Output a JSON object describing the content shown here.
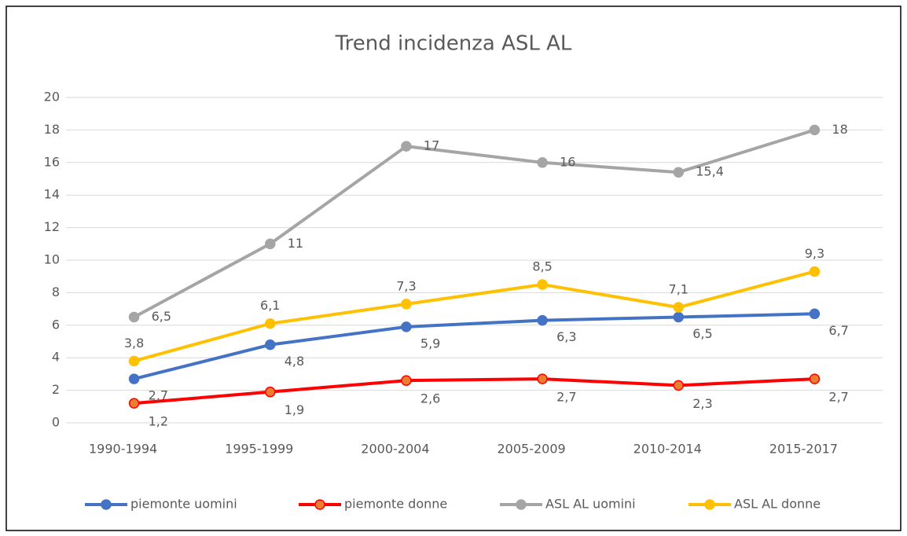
{
  "chart_data": {
    "type": "line",
    "title": "Trend incidenza ASL AL",
    "categories": [
      "1990-1994",
      "1995-1999",
      "2000-2004",
      "2005-2009",
      "2010-2014",
      "2015-2017"
    ],
    "series": [
      {
        "name": "piemonte uomini",
        "color": "#4472c4",
        "values": [
          2.7,
          4.8,
          5.9,
          6.3,
          6.5,
          6.7
        ],
        "value_labels": [
          "2,7",
          "4,8",
          "5,9",
          "6,3",
          "6,5",
          "6,7"
        ]
      },
      {
        "name": "piemonte donne",
        "color": "#ff0000",
        "values": [
          1.2,
          1.9,
          2.6,
          2.7,
          2.3,
          2.7
        ],
        "value_labels": [
          "1,2",
          "1,9",
          "2,6",
          "2,7",
          "2,3",
          "2,7"
        ]
      },
      {
        "name": "ASL AL uomini",
        "color": "#a5a5a5",
        "values": [
          6.5,
          11,
          17,
          16,
          15.4,
          18
        ],
        "value_labels": [
          "6,5",
          "11",
          "17",
          "16",
          "15,4",
          "18"
        ]
      },
      {
        "name": "ASL AL donne",
        "color": "#ffc000",
        "values": [
          3.8,
          6.1,
          7.3,
          8.5,
          7.1,
          9.3
        ],
        "value_labels": [
          "3,8",
          "6,1",
          "7,3",
          "8,5",
          "7,1",
          "9,3"
        ]
      }
    ],
    "ylim": [
      0,
      20
    ],
    "yticks": [
      0,
      2,
      4,
      6,
      8,
      10,
      12,
      14,
      16,
      18,
      20
    ],
    "grid": true,
    "legend": "bottom"
  }
}
